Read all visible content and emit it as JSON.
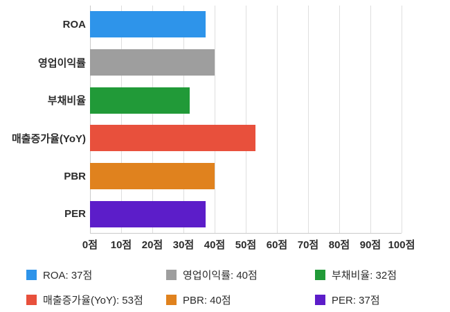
{
  "chart_data": {
    "type": "bar",
    "orientation": "horizontal",
    "categories": [
      "ROA",
      "영업이익률",
      "부채비율",
      "매출증가율(YoY)",
      "PBR",
      "PER"
    ],
    "values": [
      37,
      40,
      32,
      53,
      40,
      37
    ],
    "unit": "점",
    "colors": [
      "#2e94ea",
      "#9e9e9e",
      "#219a38",
      "#e8503c",
      "#e0821e",
      "#5c1dc9"
    ],
    "xlim": [
      0,
      100
    ],
    "x_ticks": [
      "0점",
      "10점",
      "20점",
      "30점",
      "40점",
      "50점",
      "60점",
      "70점",
      "80점",
      "90점",
      "100점"
    ],
    "grid": true,
    "legend_position": "bottom",
    "legend": [
      "ROA: 37점",
      "영업이익률: 40점",
      "부채비율: 32점",
      "매출증가율(YoY): 53점",
      "PBR: 40점",
      "PER: 37점"
    ]
  }
}
